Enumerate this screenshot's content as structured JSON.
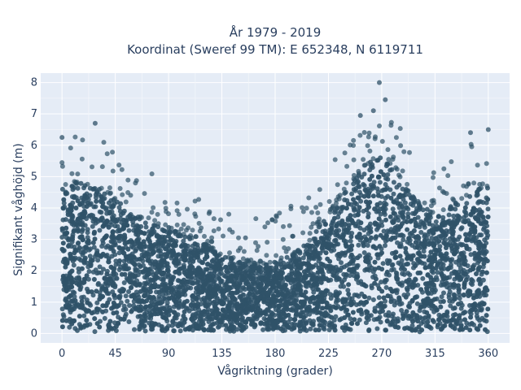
{
  "chart_data": {
    "type": "scatter",
    "title_line1": "År 1979 - 2019",
    "title_line2": "Koordinat (Sweref 99 TM): E 652348, N 6119711",
    "xlabel": "Vågriktning (grader)",
    "ylabel": "Signifikant våghöjd (m)",
    "xlim": [
      -18,
      378
    ],
    "ylim": [
      -0.3,
      8.3
    ],
    "xticks": [
      0,
      45,
      90,
      135,
      180,
      225,
      270,
      315,
      360
    ],
    "yticks": [
      0,
      1,
      2,
      3,
      4,
      5,
      6,
      7,
      8
    ],
    "grid": true,
    "plot_background": "#e5ecf6",
    "marker_color": "#2f5268",
    "envelope": {
      "x": [
        0,
        15,
        30,
        45,
        60,
        75,
        90,
        105,
        120,
        135,
        150,
        165,
        180,
        195,
        210,
        225,
        240,
        255,
        270,
        285,
        300,
        315,
        330,
        345,
        360
      ],
      "y_max": [
        4.7,
        4.8,
        4.7,
        4.3,
        3.8,
        3.5,
        3.4,
        3.1,
        2.9,
        2.5,
        2.3,
        2.2,
        2.3,
        2.5,
        3.0,
        3.8,
        4.6,
        5.3,
        5.8,
        5.0,
        4.2,
        3.8,
        4.1,
        4.5,
        4.7
      ]
    },
    "notable_points": [
      {
        "x": 268,
        "y": 8.0
      },
      {
        "x": 273,
        "y": 7.45
      },
      {
        "x": 263,
        "y": 7.1
      },
      {
        "x": 252,
        "y": 6.95
      },
      {
        "x": 28,
        "y": 6.7
      },
      {
        "x": 0,
        "y": 6.25
      },
      {
        "x": 360,
        "y": 6.5
      },
      {
        "x": 345,
        "y": 6.4
      },
      {
        "x": 155,
        "y": 3.05
      },
      {
        "x": 195,
        "y": 3.1
      }
    ]
  }
}
